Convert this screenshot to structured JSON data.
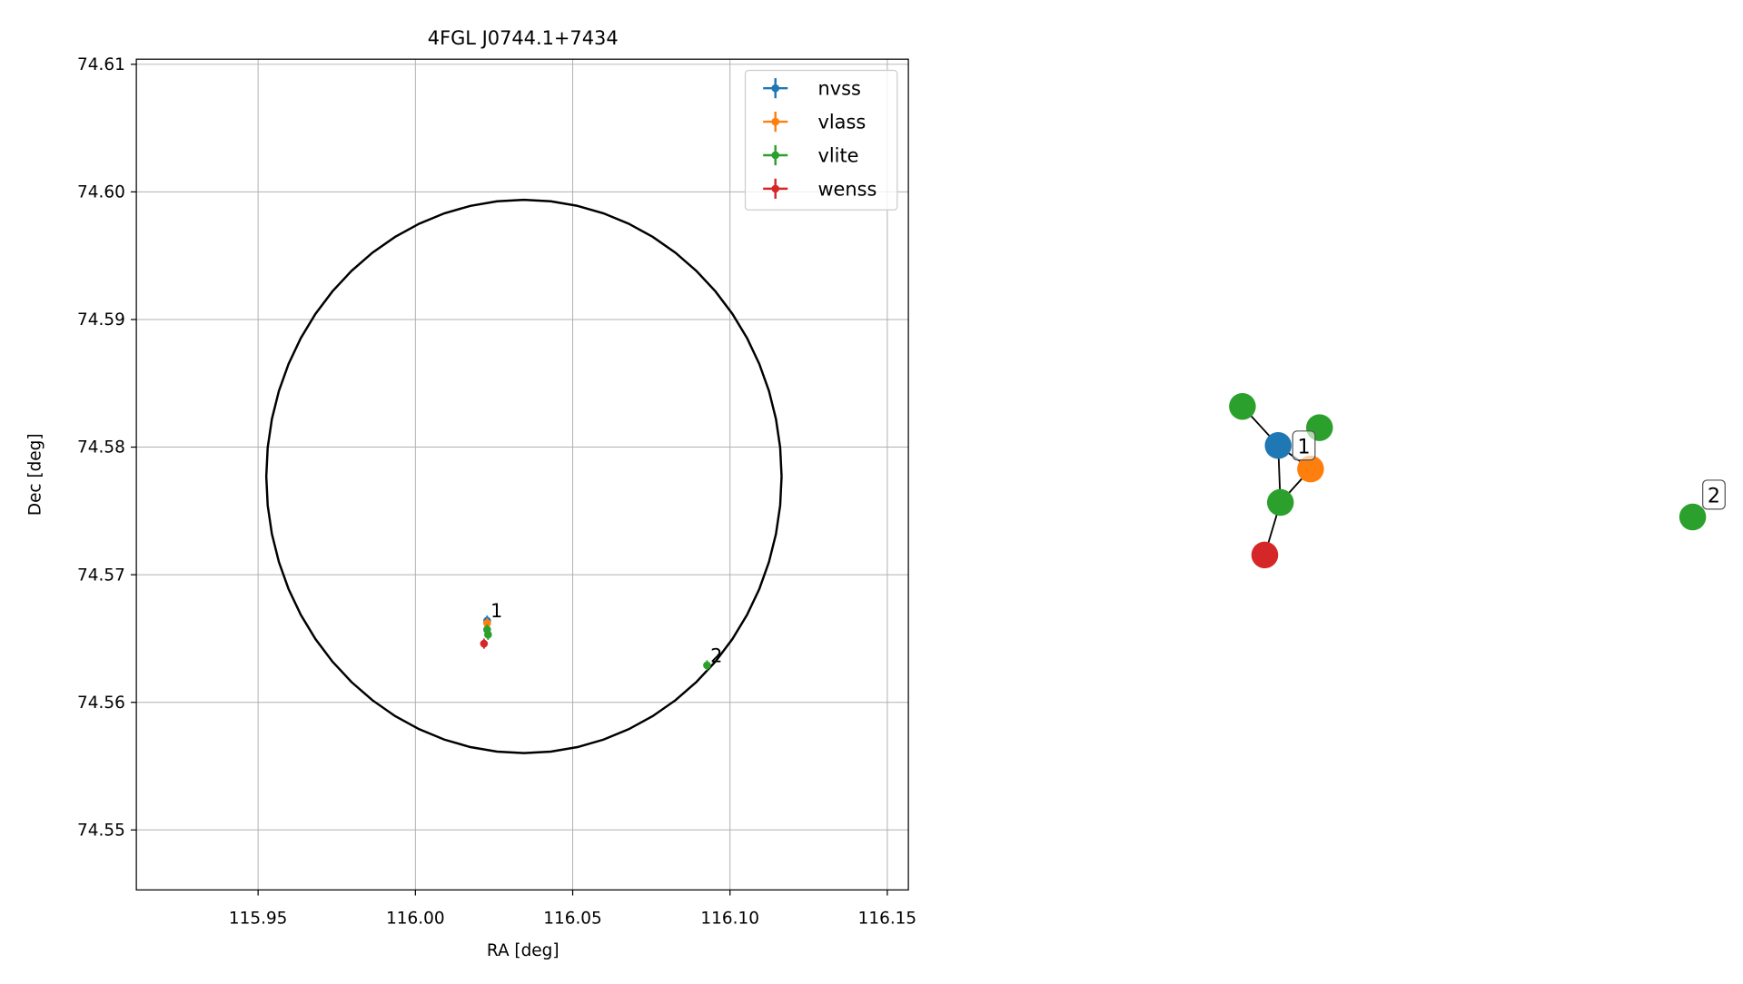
{
  "chart_data": {
    "type": "scatter",
    "title": "4FGL J0744.1+7434",
    "xlabel": "RA [deg]",
    "ylabel": "Dec [deg]",
    "xlim": [
      115.9113,
      116.1567
    ],
    "ylim": [
      74.5453,
      74.6104
    ],
    "xticks": [
      115.95,
      {
        "value": 116,
        "label": "116.00"
      },
      116.05,
      {
        "value": 116.1,
        "label": "116.10"
      },
      116.15
    ],
    "yticks": [
      74.55,
      74.56,
      74.57,
      74.58,
      74.59,
      {
        "value": 74.6,
        "label": "74.60"
      },
      74.61
    ],
    "grid": true,
    "legend": "upper right",
    "series": [
      {
        "name": "nvss",
        "color": "#1f77b4",
        "x": [
          116.0228
        ],
        "values": [
          74.5664
        ],
        "xerr": [
          0.0003
        ],
        "yerr": [
          0.0004
        ]
      },
      {
        "name": "vlass",
        "color": "#ff7f0e",
        "x": [
          116.0228
        ],
        "values": [
          74.5662
        ],
        "xerr": [
          0.0003
        ],
        "yerr": [
          0.0004
        ]
      },
      {
        "name": "vlite",
        "color": "#2ca02c",
        "x": [
          116.0228,
          116.0231,
          116.0927
        ],
        "values": [
          74.5657,
          74.5653,
          74.5629
        ],
        "xerr": [
          0.0003,
          0.0003,
          0.0003
        ],
        "yerr": [
          0.0004,
          0.0004,
          0.0004
        ]
      },
      {
        "name": "wenss",
        "color": "#d62728",
        "x": [
          116.0218
        ],
        "values": [
          74.5646
        ],
        "xerr": [
          0.0003
        ],
        "yerr": [
          0.0004
        ]
      }
    ],
    "ellipse": {
      "x": 116.0345,
      "y": 74.5777,
      "rx": 0.0819,
      "ry": 0.02168
    },
    "annotations": [
      {
        "text": "1",
        "x": 116.0228,
        "y": 74.5664
      },
      {
        "text": "2",
        "x": 116.0927,
        "y": 74.5629
      }
    ]
  },
  "graph": {
    "node_colors": [
      "#2ca02c",
      "#1f77b4",
      "#2ca02c",
      "#ff7f0e",
      "#2ca02c",
      "#d62728",
      "#2ca02c"
    ],
    "edges": [
      [
        0,
        1
      ],
      [
        1,
        4
      ],
      [
        1,
        3
      ],
      [
        4,
        3
      ],
      [
        5,
        4
      ]
    ],
    "labels": [
      "1",
      "2"
    ]
  }
}
